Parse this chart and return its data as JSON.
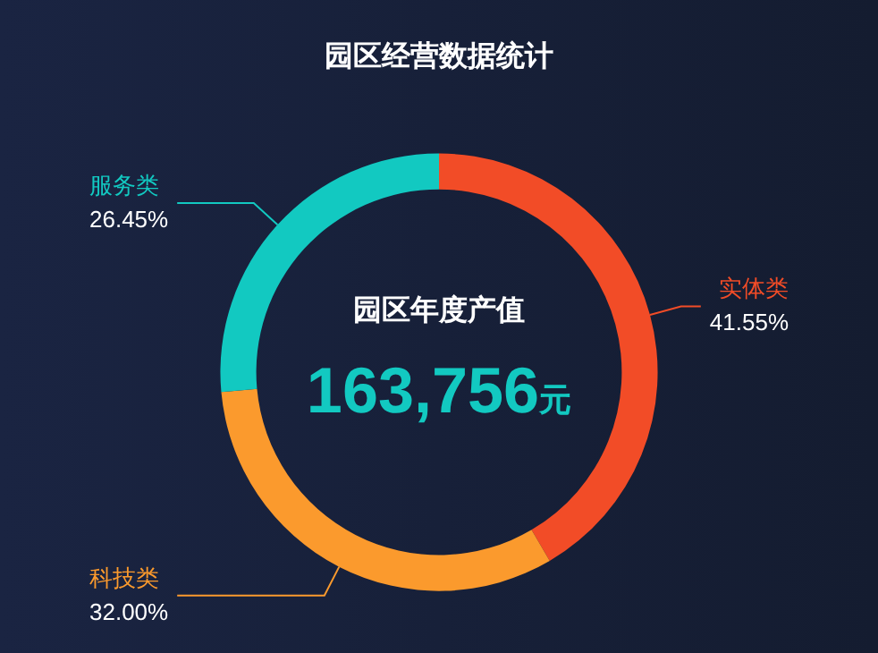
{
  "chart_data": {
    "type": "donut",
    "title": "园区经营数据统计",
    "categories": [
      "实体类",
      "科技类",
      "服务类"
    ],
    "values": [
      41.55,
      32.0,
      26.45
    ],
    "value_labels": [
      "41.55%",
      "32.00%",
      "26.45%"
    ],
    "colors": [
      "#f24c27",
      "#fb9a2d",
      "#12c9c1"
    ],
    "annotations": [
      "园区年度产值",
      "163,756元"
    ],
    "legend": false
  }
}
